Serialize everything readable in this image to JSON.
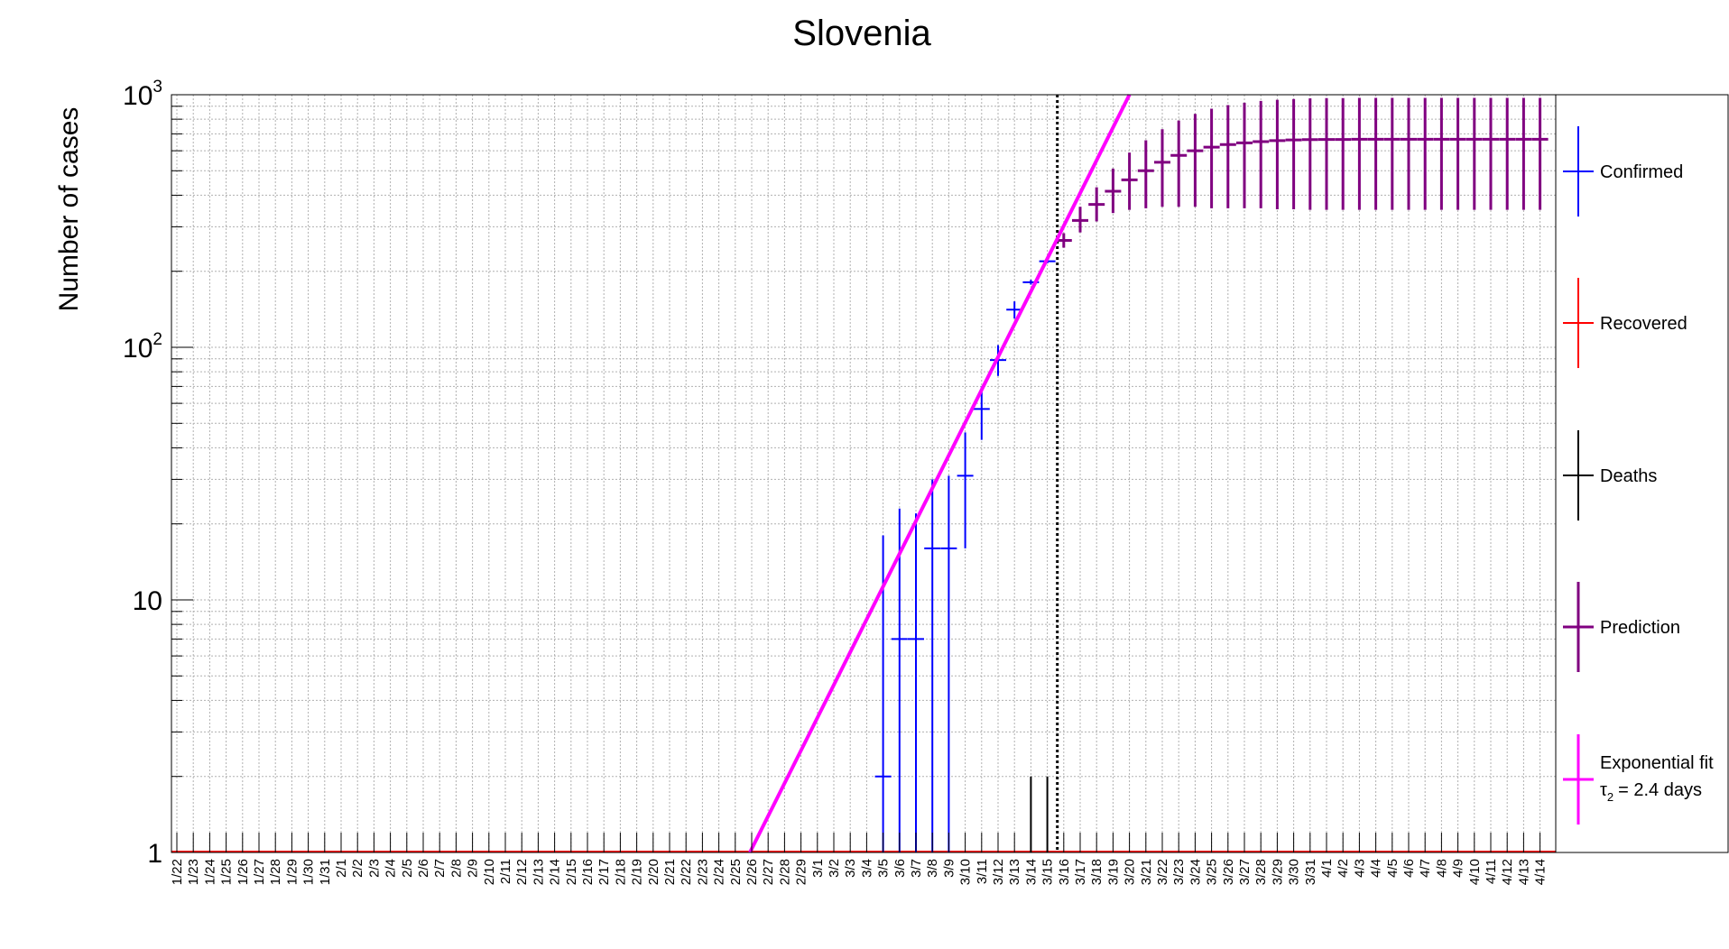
{
  "chart_data": {
    "type": "scatter",
    "title": "Slovenia",
    "ylabel": "Number of cases",
    "xlabel": "",
    "y_scale": "log",
    "ylim": [
      1,
      1000
    ],
    "grid": true,
    "legend_position": "right",
    "x_categories": [
      "1/22",
      "1/23",
      "1/24",
      "1/25",
      "1/26",
      "1/27",
      "1/28",
      "1/29",
      "1/30",
      "1/31",
      "2/1",
      "2/2",
      "2/3",
      "2/4",
      "2/5",
      "2/6",
      "2/7",
      "2/8",
      "2/9",
      "2/10",
      "2/11",
      "2/12",
      "2/13",
      "2/14",
      "2/15",
      "2/16",
      "2/17",
      "2/18",
      "2/19",
      "2/20",
      "2/21",
      "2/22",
      "2/23",
      "2/24",
      "2/25",
      "2/26",
      "2/27",
      "2/28",
      "2/29",
      "3/1",
      "3/2",
      "3/3",
      "3/4",
      "3/5",
      "3/6",
      "3/7",
      "3/8",
      "3/9",
      "3/10",
      "3/11",
      "3/12",
      "3/13",
      "3/14",
      "3/15",
      "3/16",
      "3/17",
      "3/18",
      "3/19",
      "3/20",
      "3/21",
      "3/22",
      "3/23",
      "3/24",
      "3/25",
      "3/26",
      "3/27",
      "3/28",
      "3/29",
      "3/30",
      "3/31",
      "4/1",
      "4/2",
      "4/3",
      "4/4",
      "4/5",
      "4/6",
      "4/7",
      "4/8",
      "4/9",
      "4/10",
      "4/11",
      "4/12",
      "4/13",
      "4/14"
    ],
    "y_ticks": [
      {
        "value": 1,
        "base": "1",
        "exp": ""
      },
      {
        "value": 10,
        "base": "10",
        "exp": ""
      },
      {
        "value": 100,
        "base": "10",
        "exp": "2"
      },
      {
        "value": 1000,
        "base": "10",
        "exp": "3"
      }
    ],
    "prediction_start": "3/15",
    "series": [
      {
        "name": "Confirmed",
        "color": "#0000ff",
        "points": [
          {
            "x": "3/5",
            "y": 2,
            "lo": 1,
            "hi": 18
          },
          {
            "x": "3/6",
            "y": 7,
            "lo": 1,
            "hi": 23
          },
          {
            "x": "3/7",
            "y": 7,
            "lo": 1,
            "hi": 22
          },
          {
            "x": "3/8",
            "y": 16,
            "lo": 1,
            "hi": 30
          },
          {
            "x": "3/9",
            "y": 16,
            "lo": 1,
            "hi": 31
          },
          {
            "x": "3/10",
            "y": 31,
            "lo": 16,
            "hi": 46
          },
          {
            "x": "3/11",
            "y": 57,
            "lo": 43,
            "hi": 70
          },
          {
            "x": "3/12",
            "y": 89,
            "lo": 77,
            "hi": 102
          },
          {
            "x": "3/13",
            "y": 141,
            "lo": 130,
            "hi": 152
          },
          {
            "x": "3/14",
            "y": 181,
            "lo": 177,
            "hi": 185
          },
          {
            "x": "3/15",
            "y": 219,
            "lo": 215,
            "hi": 223
          }
        ]
      },
      {
        "name": "Recovered",
        "color": "#ff0000",
        "points": []
      },
      {
        "name": "Deaths",
        "color": "#000000",
        "points": [
          {
            "x": "3/14",
            "y": 1,
            "lo": 1,
            "hi": 2
          },
          {
            "x": "3/15",
            "y": 1,
            "lo": 1,
            "hi": 2
          }
        ]
      },
      {
        "name": "Prediction",
        "color": "#800080",
        "points": [
          {
            "x": "3/16",
            "y": 265,
            "lo": 248,
            "hi": 283
          },
          {
            "x": "3/17",
            "y": 318,
            "lo": 285,
            "hi": 360
          },
          {
            "x": "3/18",
            "y": 368,
            "lo": 315,
            "hi": 430
          },
          {
            "x": "3/19",
            "y": 415,
            "lo": 340,
            "hi": 510
          },
          {
            "x": "3/20",
            "y": 460,
            "lo": 350,
            "hi": 590
          },
          {
            "x": "3/21",
            "y": 500,
            "lo": 355,
            "hi": 660
          },
          {
            "x": "3/22",
            "y": 540,
            "lo": 360,
            "hi": 730
          },
          {
            "x": "3/23",
            "y": 575,
            "lo": 360,
            "hi": 790
          },
          {
            "x": "3/24",
            "y": 600,
            "lo": 360,
            "hi": 840
          },
          {
            "x": "3/25",
            "y": 620,
            "lo": 355,
            "hi": 880
          },
          {
            "x": "3/26",
            "y": 635,
            "lo": 355,
            "hi": 910
          },
          {
            "x": "3/27",
            "y": 645,
            "lo": 355,
            "hi": 930
          },
          {
            "x": "3/28",
            "y": 652,
            "lo": 355,
            "hi": 945
          },
          {
            "x": "3/29",
            "y": 658,
            "lo": 352,
            "hi": 955
          },
          {
            "x": "3/30",
            "y": 662,
            "lo": 352,
            "hi": 962
          },
          {
            "x": "3/31",
            "y": 664,
            "lo": 350,
            "hi": 968
          },
          {
            "x": "4/1",
            "y": 665,
            "lo": 350,
            "hi": 970
          },
          {
            "x": "4/2",
            "y": 665,
            "lo": 350,
            "hi": 970
          },
          {
            "x": "4/3",
            "y": 666,
            "lo": 350,
            "hi": 972
          },
          {
            "x": "4/4",
            "y": 666,
            "lo": 350,
            "hi": 972
          },
          {
            "x": "4/5",
            "y": 666,
            "lo": 350,
            "hi": 972
          },
          {
            "x": "4/6",
            "y": 666,
            "lo": 350,
            "hi": 972
          },
          {
            "x": "4/7",
            "y": 666,
            "lo": 350,
            "hi": 972
          },
          {
            "x": "4/8",
            "y": 666,
            "lo": 350,
            "hi": 972
          },
          {
            "x": "4/9",
            "y": 666,
            "lo": 350,
            "hi": 972
          },
          {
            "x": "4/10",
            "y": 666,
            "lo": 350,
            "hi": 972
          },
          {
            "x": "4/11",
            "y": 666,
            "lo": 350,
            "hi": 972
          },
          {
            "x": "4/12",
            "y": 666,
            "lo": 350,
            "hi": 972
          },
          {
            "x": "4/13",
            "y": 666,
            "lo": 350,
            "hi": 972
          },
          {
            "x": "4/14",
            "y": 666,
            "lo": 350,
            "hi": 972
          }
        ]
      },
      {
        "name": "Exponential fit",
        "legend_line2": "= 2.4 days",
        "legend_symbol": "τ",
        "legend_subscript": "2",
        "color": "#ff00ff",
        "line": [
          {
            "x": "2/26",
            "y": 1
          },
          {
            "x": "3/20",
            "y": 1000
          }
        ]
      }
    ]
  }
}
